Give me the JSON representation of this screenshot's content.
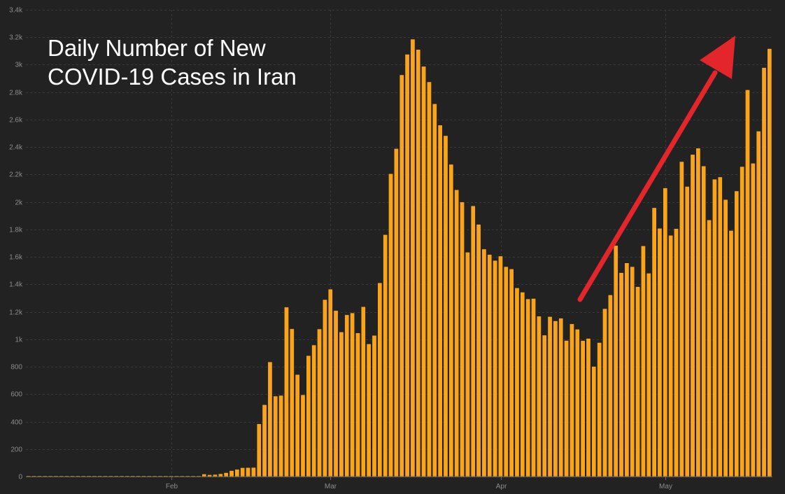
{
  "chart_data": {
    "type": "bar",
    "title_lines": [
      "Daily Number of New",
      "COVID-19 Cases in Iran"
    ],
    "xlabel": "",
    "ylabel": "",
    "ylim": [
      0,
      3400
    ],
    "y_ticks": [
      0,
      200,
      400,
      600,
      800,
      1000,
      1200,
      1400,
      1600,
      1800,
      2000,
      2200,
      2400,
      2600,
      2800,
      3000,
      3200,
      3400
    ],
    "y_tick_labels": [
      "0",
      "200",
      "400",
      "600",
      "800",
      "1k",
      "1.2k",
      "1.4k",
      "1.6k",
      "1.8k",
      "2k",
      "2.2k",
      "2.4k",
      "2.6k",
      "2.8k",
      "3k",
      "3.2k",
      "3.4k"
    ],
    "x_ticks": [
      {
        "label": "Feb",
        "day_index": 26
      },
      {
        "label": "Mar",
        "day_index": 55
      },
      {
        "label": "Apr",
        "day_index": 86
      },
      {
        "label": "May",
        "day_index": 116
      }
    ],
    "grid": true,
    "bar_color": "#faa41a",
    "annotation": {
      "type": "arrow",
      "color": "#e3262b",
      "description": "upward trend arrow"
    },
    "values": [
      0,
      0,
      0,
      0,
      0,
      0,
      0,
      0,
      0,
      0,
      0,
      0,
      0,
      0,
      0,
      0,
      0,
      0,
      0,
      0,
      0,
      0,
      0,
      0,
      0,
      0,
      0,
      0,
      0,
      0,
      0,
      2,
      18,
      13,
      15,
      20,
      28,
      43,
      52,
      64,
      65,
      66,
      384,
      523,
      835,
      586,
      591,
      1234,
      1076,
      743,
      595,
      881,
      958,
      1075,
      1289,
      1365,
      1209,
      1053,
      1178,
      1192,
      1046,
      1237,
      966,
      1028,
      1411,
      1762,
      2206,
      2389,
      2926,
      3076,
      3186,
      3111,
      2988,
      2875,
      2715,
      2560,
      2483,
      2274,
      2089,
      2000,
      1634,
      1972,
      1837,
      1657,
      1617,
      1574,
      1606,
      1529,
      1512,
      1374,
      1343,
      1294,
      1297,
      1168,
      1030,
      1165,
      1134,
      1153,
      991,
      1112,
      1073,
      990,
      1006,
      802,
      976,
      1223,
      1323,
      1683,
      1485,
      1556,
      1529,
      1383,
      1680,
      1481,
      1958,
      1808,
      2102,
      1757,
      1806,
      2294,
      2113,
      2346,
      2392,
      2262,
      1869,
      2166,
      2182,
      2018,
      1792,
      2080,
      2258,
      2817,
      2282,
      2516,
      2979,
      3117
    ]
  }
}
